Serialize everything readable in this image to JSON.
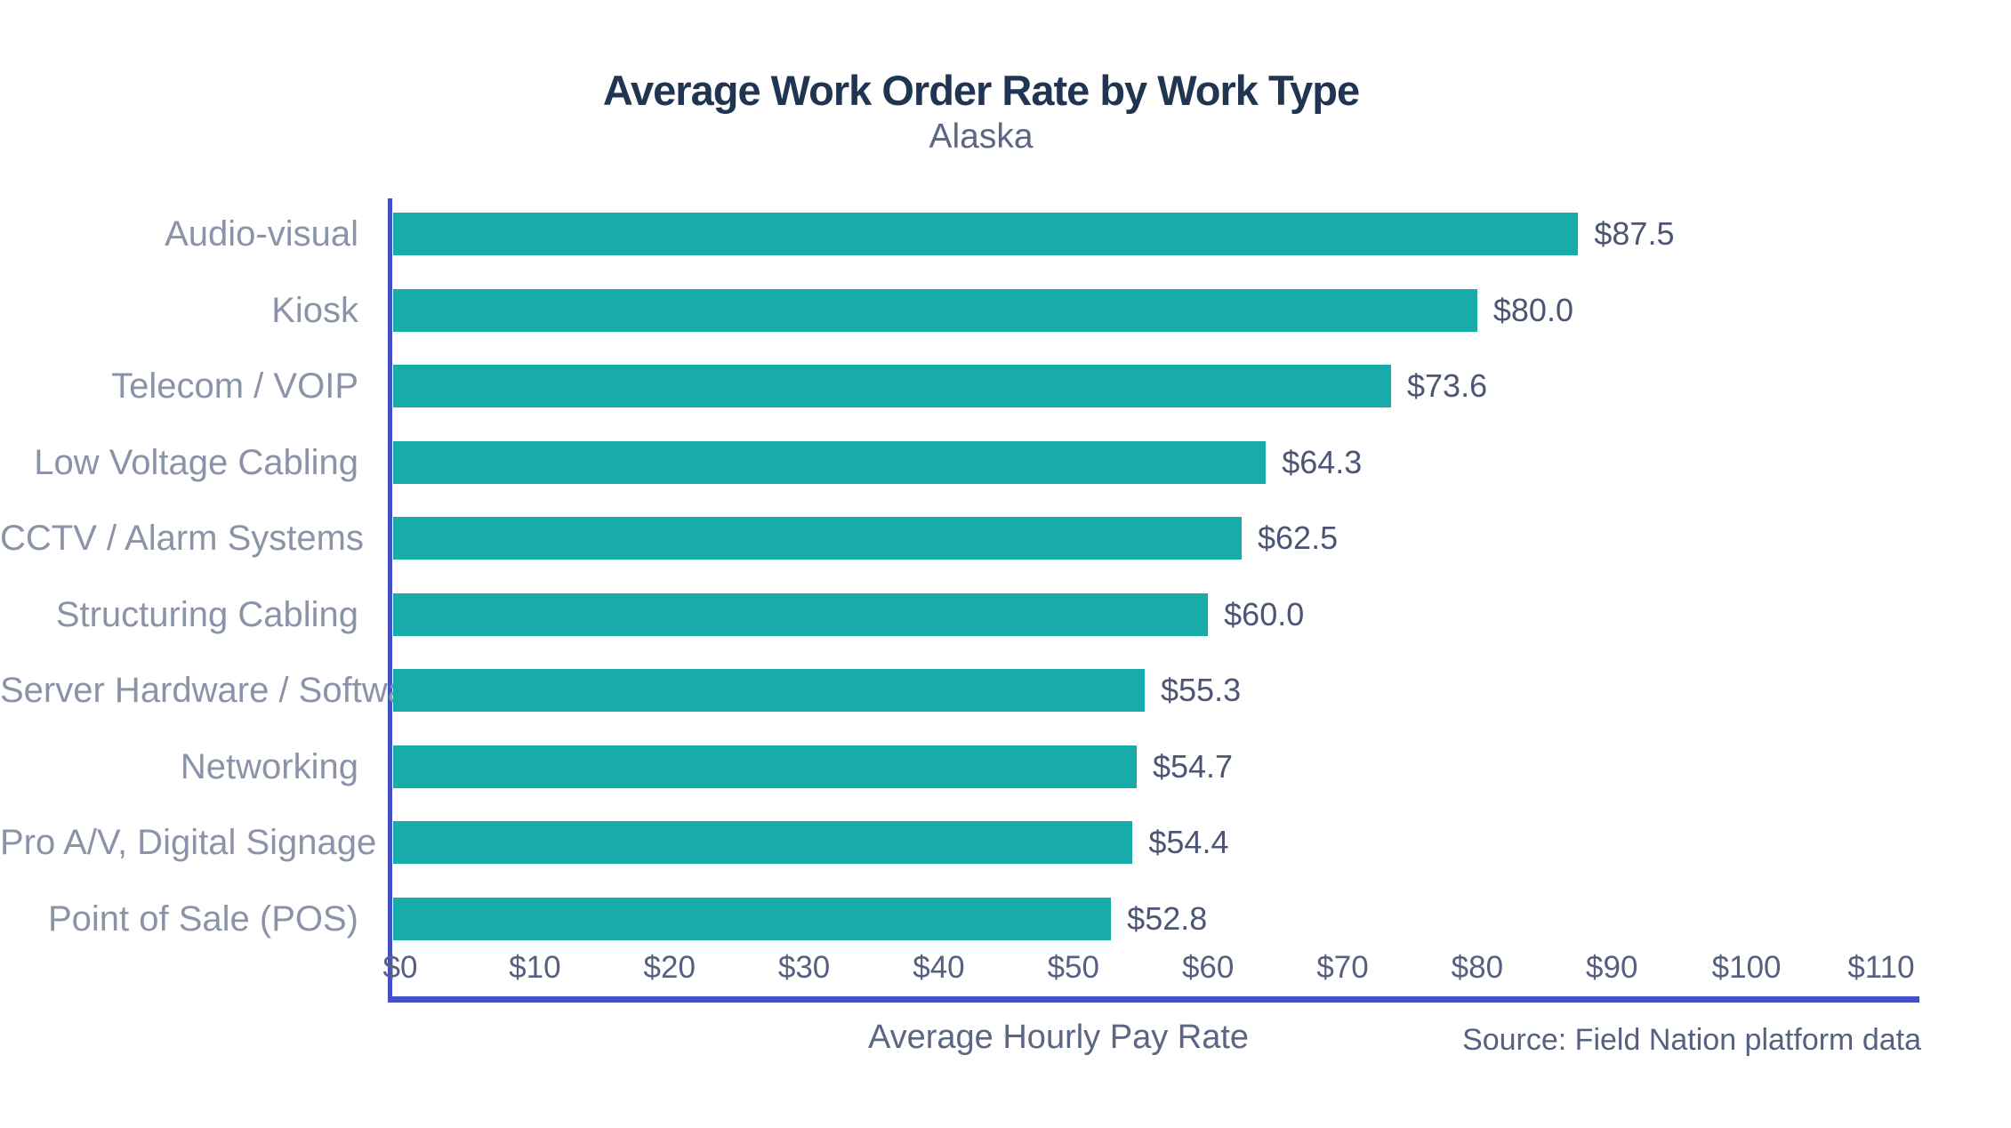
{
  "chart_data": {
    "type": "bar",
    "orientation": "horizontal",
    "title": "Average Work Order Rate by Work Type",
    "subtitle": "Alaska",
    "categories": [
      "Audio-visual",
      "Kiosk",
      "Telecom / VOIP",
      "Low Voltage Cabling",
      "CCTV / Alarm Systems",
      "Structuring Cabling",
      "Server Hardware / Software",
      "Networking",
      "Pro A/V, Digital Signage",
      "Point of Sale (POS)"
    ],
    "values": [
      87.5,
      80.0,
      73.6,
      64.3,
      62.5,
      60.0,
      55.3,
      54.7,
      54.4,
      52.8
    ],
    "value_labels": [
      "$87.5",
      "$80.0",
      "$73.6",
      "$64.3",
      "$62.5",
      "$60.0",
      "$55.3",
      "$54.7",
      "$54.4",
      "$52.8"
    ],
    "xlabel": "Average Hourly Pay Rate",
    "xticks": [
      0,
      10,
      20,
      30,
      40,
      50,
      60,
      70,
      80,
      90,
      100,
      110
    ],
    "xtick_labels": [
      "$0",
      "$10",
      "$20",
      "$30",
      "$40",
      "$50",
      "$60",
      "$70",
      "$80",
      "$90",
      "$100",
      "$110"
    ],
    "xlim": [
      0,
      113.8
    ],
    "grid": false,
    "legend": null,
    "source": "Source: Field Nation platform data",
    "colors": {
      "bar": "#17aba9",
      "axis": "#4350c8",
      "title": "#203551",
      "subtitle": "#5d6785",
      "category_label": "#8b93a9",
      "value_label": "#4c5674",
      "tick_label": "#565f80",
      "xlabel": "#5c6683",
      "source": "#55617f"
    }
  }
}
